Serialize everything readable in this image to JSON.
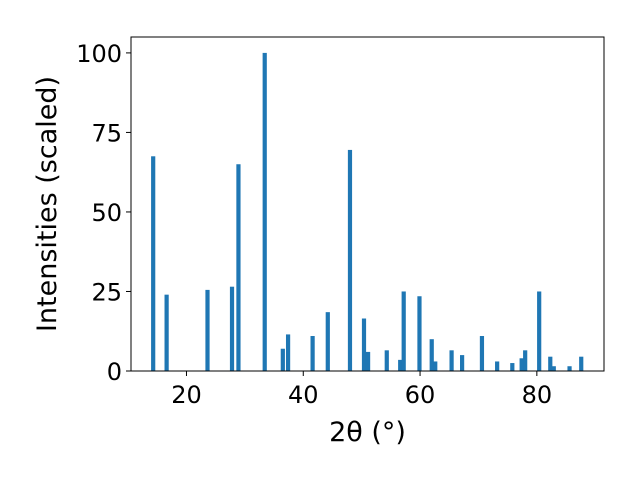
{
  "chart_data": {
    "type": "bar",
    "xlabel": "2θ (°)",
    "ylabel": "Intensities (scaled)",
    "xlim": [
      10.5,
      91.5
    ],
    "ylim": [
      0,
      105
    ],
    "xticks": [
      20,
      40,
      60,
      80
    ],
    "yticks": [
      0,
      25,
      50,
      75,
      100
    ],
    "xtick_labels": [
      "20",
      "40",
      "60",
      "80"
    ],
    "ytick_labels": [
      "0",
      "25",
      "50",
      "75",
      "100"
    ],
    "grid": false,
    "bar_color": "#1f77b4",
    "x": [
      14.3,
      16.6,
      23.6,
      27.8,
      28.9,
      33.4,
      36.5,
      37.4,
      41.6,
      44.2,
      48.0,
      50.4,
      51.1,
      54.3,
      56.6,
      57.2,
      59.9,
      62.0,
      62.6,
      65.4,
      67.2,
      70.6,
      73.2,
      75.8,
      77.4,
      78.0,
      80.4,
      82.3,
      82.9,
      85.6,
      87.6
    ],
    "values": [
      67.5,
      24.0,
      25.5,
      26.5,
      65.0,
      100.0,
      7.0,
      11.5,
      11.0,
      18.5,
      69.5,
      16.5,
      6.0,
      6.5,
      3.5,
      25.0,
      23.5,
      10.0,
      3.0,
      6.5,
      5.0,
      11.0,
      3.0,
      2.5,
      4.0,
      6.5,
      25.0,
      4.5,
      1.5,
      1.5,
      4.5
    ]
  }
}
